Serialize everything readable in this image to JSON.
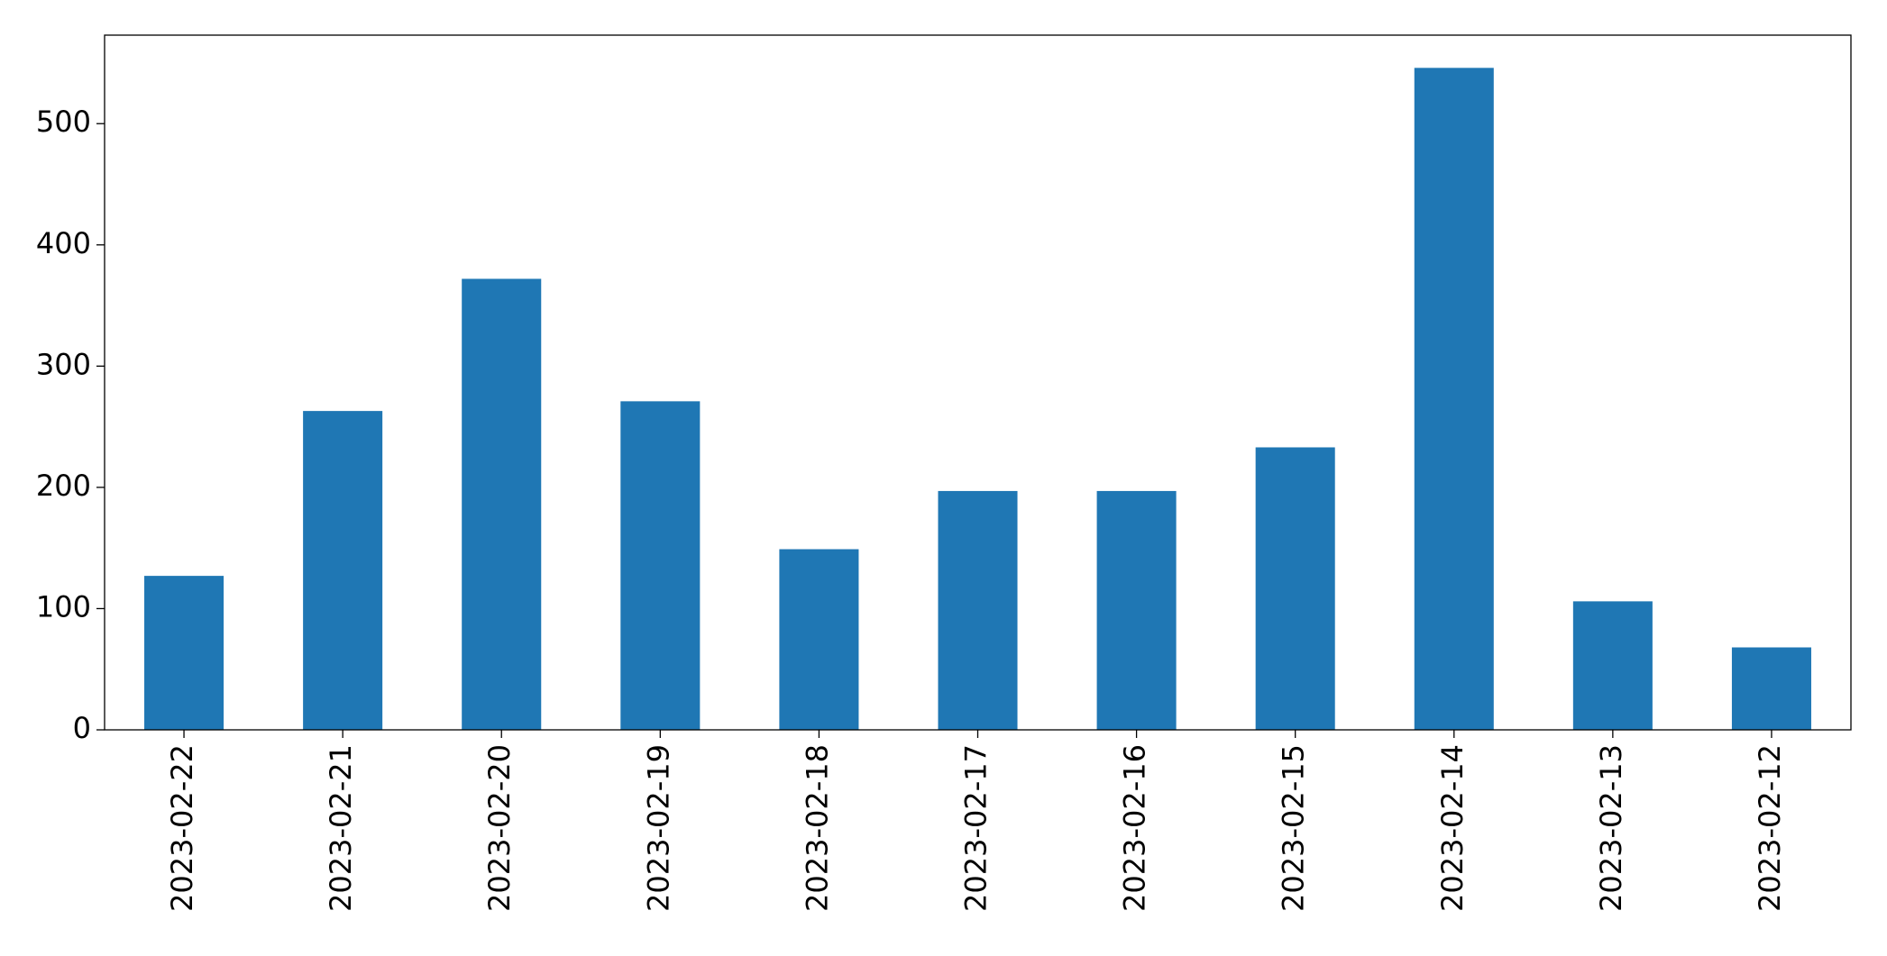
{
  "chart_data": {
    "type": "bar",
    "categories": [
      "2023-02-22",
      "2023-02-21",
      "2023-02-20",
      "2023-02-19",
      "2023-02-18",
      "2023-02-17",
      "2023-02-16",
      "2023-02-15",
      "2023-02-14",
      "2023-02-13",
      "2023-02-12"
    ],
    "values": [
      127,
      263,
      372,
      271,
      149,
      197,
      197,
      233,
      546,
      106,
      68
    ],
    "color": "#1f77b4",
    "ylim": [
      0,
      573
    ],
    "yticks": [
      0,
      100,
      200,
      300,
      400,
      500
    ],
    "grid": false
  }
}
